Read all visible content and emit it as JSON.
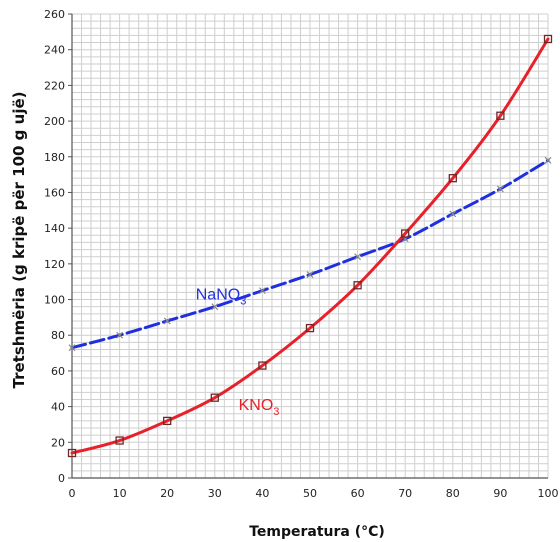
{
  "chart_data": {
    "type": "line",
    "xlabel": "Temperatura (°C)",
    "ylabel": "Tretshmëria (g kripë për 100 g ujë)",
    "xlim": [
      0,
      100
    ],
    "ylim": [
      0,
      260
    ],
    "x_ticks": [
      0,
      10,
      20,
      30,
      40,
      50,
      60,
      70,
      80,
      90,
      100
    ],
    "y_ticks": [
      0,
      20,
      40,
      60,
      80,
      100,
      120,
      140,
      160,
      180,
      200,
      220,
      240,
      260
    ],
    "grid": true,
    "series": [
      {
        "name": "NaNO3",
        "label": "NaNO",
        "label_sub": "3",
        "color": "#1f2fe0",
        "line_style": "dashed",
        "marker": "x",
        "x": [
          0,
          10,
          20,
          30,
          40,
          50,
          60,
          70,
          80,
          90,
          100
        ],
        "values": [
          73,
          80,
          88,
          96,
          105,
          114,
          124,
          134,
          148,
          162,
          178
        ]
      },
      {
        "name": "KNO3",
        "label": "KNO",
        "label_sub": "3",
        "color": "#e8202a",
        "line_style": "solid",
        "marker": "square",
        "x": [
          0,
          10,
          20,
          30,
          40,
          50,
          60,
          70,
          80,
          90,
          100
        ],
        "values": [
          14,
          21,
          32,
          45,
          63,
          84,
          108,
          137,
          168,
          203,
          246
        ]
      }
    ]
  }
}
